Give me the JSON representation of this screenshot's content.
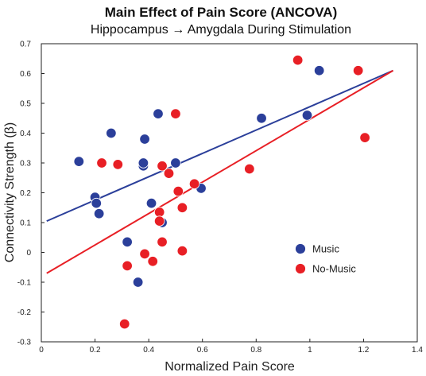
{
  "chart_data": {
    "type": "scatter",
    "title": "Main Effect of Pain Score (ANCOVA)",
    "subtitle": "Hippocampus → Amygdala During Stimulation",
    "xlabel": "Normalized Pain Score",
    "ylabel": "Connectivity Strength (β)",
    "xlim": [
      0,
      1.4
    ],
    "ylim": [
      -0.3,
      0.7
    ],
    "xticks": [
      "0",
      "0.2",
      "0.4",
      "0.6",
      "0.8",
      "1",
      "1.2",
      "1.4"
    ],
    "yticks": [
      "-0.3",
      "-0.2",
      "-0.1",
      "0",
      "0.1",
      "0.2",
      "0.3",
      "0.4",
      "0.5",
      "0.6",
      "0.7"
    ],
    "legend_position": "right-center",
    "series": [
      {
        "name": "Music",
        "color": "#2b3f9a",
        "points": [
          [
            0.14,
            0.305
          ],
          [
            0.2,
            0.185
          ],
          [
            0.205,
            0.165
          ],
          [
            0.215,
            0.13
          ],
          [
            0.26,
            0.4
          ],
          [
            0.32,
            0.035
          ],
          [
            0.36,
            -0.1
          ],
          [
            0.38,
            0.29
          ],
          [
            0.38,
            0.3
          ],
          [
            0.385,
            0.38
          ],
          [
            0.41,
            0.165
          ],
          [
            0.435,
            0.465
          ],
          [
            0.45,
            0.1
          ],
          [
            0.5,
            0.3
          ],
          [
            0.595,
            0.215
          ],
          [
            0.82,
            0.45
          ],
          [
            0.99,
            0.46
          ],
          [
            1.035,
            0.61
          ]
        ],
        "fit": {
          "x": [
            0.02,
            1.31
          ],
          "y": [
            0.105,
            0.61
          ]
        }
      },
      {
        "name": "No-Music",
        "color": "#e81f25",
        "points": [
          [
            0.225,
            0.3
          ],
          [
            0.285,
            0.295
          ],
          [
            0.31,
            -0.24
          ],
          [
            0.32,
            -0.045
          ],
          [
            0.385,
            -0.005
          ],
          [
            0.415,
            -0.03
          ],
          [
            0.44,
            0.135
          ],
          [
            0.44,
            0.105
          ],
          [
            0.45,
            0.035
          ],
          [
            0.45,
            0.29
          ],
          [
            0.475,
            0.265
          ],
          [
            0.5,
            0.465
          ],
          [
            0.51,
            0.205
          ],
          [
            0.525,
            0.15
          ],
          [
            0.525,
            0.005
          ],
          [
            0.57,
            0.23
          ],
          [
            0.775,
            0.28
          ],
          [
            0.955,
            0.645
          ],
          [
            1.18,
            0.61
          ],
          [
            1.205,
            0.385
          ]
        ],
        "fit": {
          "x": [
            0.02,
            1.31
          ],
          "y": [
            -0.07,
            0.61
          ]
        }
      }
    ]
  }
}
